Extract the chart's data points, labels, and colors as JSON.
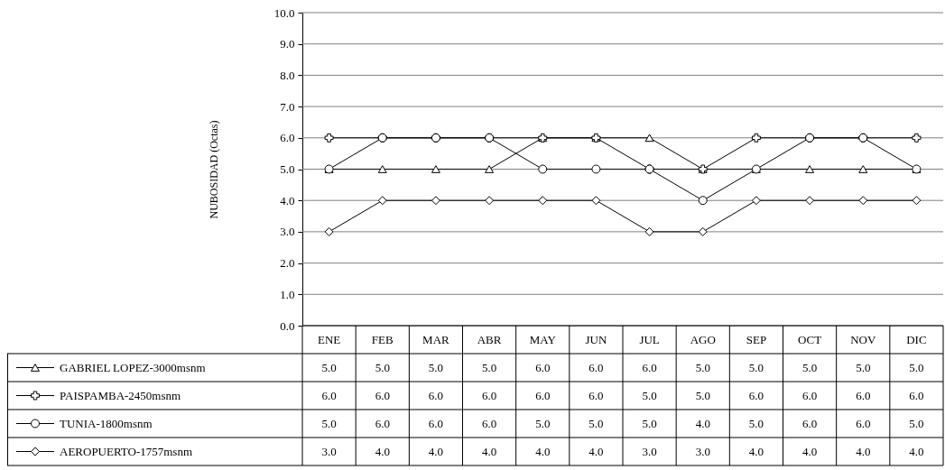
{
  "chart_data": {
    "type": "line",
    "ylabel": "NUBOSIDAD (Octas)",
    "categories": [
      "ENE",
      "FEB",
      "MAR",
      "ABR",
      "MAY",
      "JUN",
      "JUL",
      "AGO",
      "SEP",
      "OCT",
      "NOV",
      "DIC"
    ],
    "series": [
      {
        "name": "GABRIEL LOPEZ-3000msnm",
        "color": "#000000",
        "marker": "triangle",
        "values": [
          5,
          5,
          5,
          5,
          6,
          6,
          6,
          5,
          5,
          5,
          5,
          5
        ],
        "value_labels": [
          "5.0",
          "5.0",
          "5.0",
          "5.0",
          "6.0",
          "6.0",
          "6.0",
          "5.0",
          "5.0",
          "5.0",
          "5.0",
          "5.0"
        ]
      },
      {
        "name": "PAISPAMBA-2450msnm",
        "color": "#000000",
        "marker": "cross",
        "values": [
          6,
          6,
          6,
          6,
          6,
          6,
          5,
          5,
          6,
          6,
          6,
          6
        ],
        "value_labels": [
          "6.0",
          "6.0",
          "6.0",
          "6.0",
          "6.0",
          "6.0",
          "5.0",
          "5.0",
          "6.0",
          "6.0",
          "6.0",
          "6.0"
        ]
      },
      {
        "name": "TUNIA-1800msnm",
        "color": "#000000",
        "marker": "circle",
        "values": [
          5,
          6,
          6,
          6,
          5,
          5,
          5,
          4,
          5,
          6,
          6,
          5
        ],
        "value_labels": [
          "5.0",
          "6.0",
          "6.0",
          "6.0",
          "5.0",
          "5.0",
          "5.0",
          "4.0",
          "5.0",
          "6.0",
          "6.0",
          "5.0"
        ]
      },
      {
        "name": "AEROPUERTO-1757msnm",
        "color": "#000000",
        "marker": "diamond",
        "values": [
          3,
          4,
          4,
          4,
          4,
          4,
          3,
          3,
          4,
          4,
          4,
          4
        ],
        "value_labels": [
          "3.0",
          "4.0",
          "4.0",
          "4.0",
          "4.0",
          "4.0",
          "3.0",
          "3.0",
          "4.0",
          "4.0",
          "4.0",
          "4.0"
        ]
      }
    ],
    "ylim": [
      0,
      10
    ],
    "yticks": [
      {
        "value": 0,
        "label": "0.0"
      },
      {
        "value": 1,
        "label": "1.0"
      },
      {
        "value": 2,
        "label": "2.0"
      },
      {
        "value": 3,
        "label": "3.0"
      },
      {
        "value": 4,
        "label": "4.0"
      },
      {
        "value": 5,
        "label": "5.0"
      },
      {
        "value": 6,
        "label": "6.0"
      },
      {
        "value": 7,
        "label": "7.0"
      },
      {
        "value": 8,
        "label": "8.0"
      },
      {
        "value": 9,
        "label": "9.0"
      },
      {
        "value": 10,
        "label": "10.0"
      }
    ],
    "grid": "y",
    "legend": "bottom left",
    "line_style": "solid"
  }
}
